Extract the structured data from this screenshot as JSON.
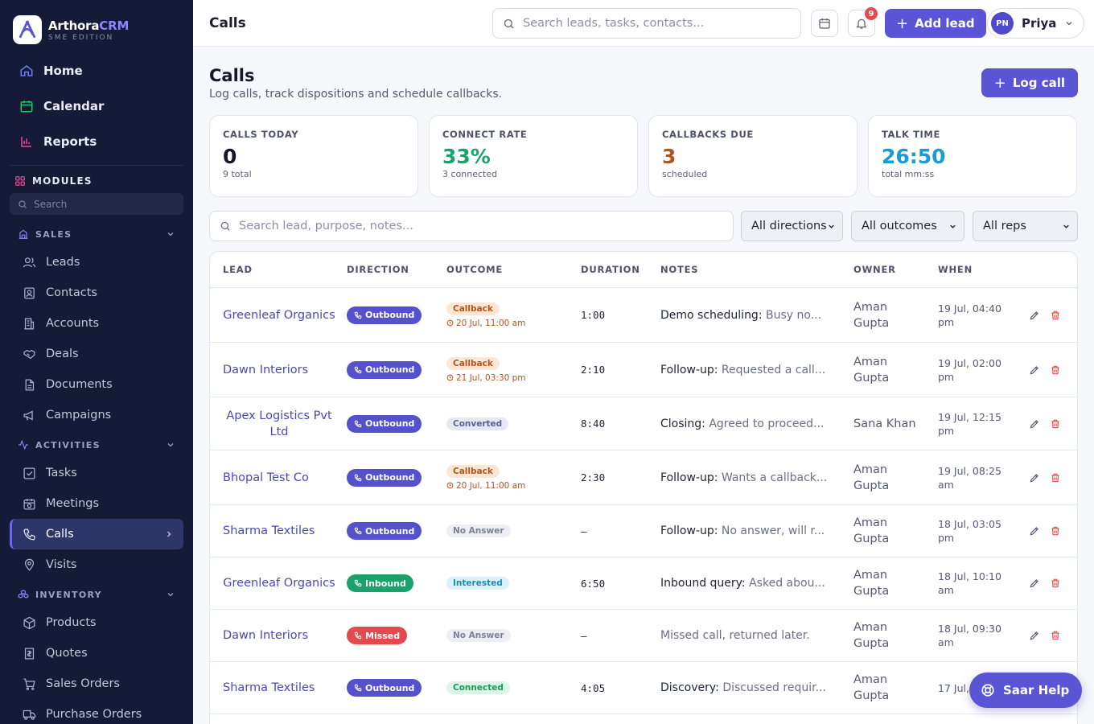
{
  "brand": {
    "name_main": "Arthora",
    "name_accent": "CRM",
    "edition": "SME EDITION"
  },
  "sidebar": {
    "top": [
      {
        "label": "Home",
        "icon": "home-icon",
        "color": "#6b7cff"
      },
      {
        "label": "Calendar",
        "icon": "calendar-icon",
        "color": "#22c55e"
      },
      {
        "label": "Reports",
        "icon": "bar-chart-icon",
        "color": "#ec4899"
      }
    ],
    "modules_label": "MODULES",
    "search_placeholder": "Search",
    "groups": [
      {
        "label": "SALES",
        "items": [
          "Leads",
          "Contacts",
          "Accounts",
          "Deals",
          "Documents",
          "Campaigns"
        ]
      },
      {
        "label": "ACTIVITIES",
        "items": [
          "Tasks",
          "Meetings",
          "Calls",
          "Visits"
        ]
      },
      {
        "label": "INVENTORY",
        "items": [
          "Products",
          "Quotes",
          "Sales Orders",
          "Purchase Orders"
        ]
      }
    ],
    "active_item": "Calls"
  },
  "header": {
    "title": "Calls",
    "search_placeholder": "Search leads, tasks, contacts...",
    "notification_count": "9",
    "add_lead_label": "Add lead",
    "user_initials": "PN",
    "user_name": "Priya"
  },
  "page": {
    "title": "Calls",
    "subtitle": "Log calls, track dispositions and schedule callbacks.",
    "log_call_label": "Log call"
  },
  "stats": [
    {
      "label": "CALLS TODAY",
      "value": "0",
      "note": "9 total",
      "color": "#151827"
    },
    {
      "label": "CONNECT RATE",
      "value": "33%",
      "note": "3 connected",
      "color": "#19a36a"
    },
    {
      "label": "CALLBACKS DUE",
      "value": "3",
      "note": "scheduled",
      "color": "#b4531a"
    },
    {
      "label": "TALK TIME",
      "value": "26:50",
      "note": "total mm:ss",
      "color": "#1a9ad6"
    }
  ],
  "filters": {
    "search_placeholder": "Search lead, purpose, notes...",
    "direction": "All directions",
    "outcome": "All outcomes",
    "rep": "All reps"
  },
  "table": {
    "columns": [
      "LEAD",
      "DIRECTION",
      "OUTCOME",
      "DURATION",
      "NOTES",
      "OWNER",
      "WHEN"
    ],
    "rows": [
      {
        "lead": "Greenleaf Organics",
        "direction": "Outbound",
        "outcome": "Callback",
        "callback_at": "20 Jul, 11:00 am",
        "duration": "1:00",
        "purpose": "Demo scheduling:",
        "note": " Busy no...",
        "owner": "Aman Gupta",
        "when": "19 Jul, 04:40 pm"
      },
      {
        "lead": "Dawn Interiors",
        "direction": "Outbound",
        "outcome": "Callback",
        "callback_at": "21 Jul, 03:30 pm",
        "duration": "2:10",
        "purpose": "Follow-up:",
        "note": " Requested a call...",
        "owner": "Aman Gupta",
        "when": "19 Jul, 02:00 pm"
      },
      {
        "lead": "Apex Logistics Pvt Ltd",
        "direction": "Outbound",
        "outcome": "Converted",
        "callback_at": "",
        "duration": "8:40",
        "purpose": "Closing:",
        "note": " Agreed to proceed...",
        "owner": "Sana Khan",
        "when": "19 Jul, 12:15 pm"
      },
      {
        "lead": "Bhopal Test Co",
        "direction": "Outbound",
        "outcome": "Callback",
        "callback_at": "20 Jul, 11:00 am",
        "duration": "2:30",
        "purpose": "Follow-up:",
        "note": " Wants a callback...",
        "owner": "Aman Gupta",
        "when": "19 Jul, 08:25 am"
      },
      {
        "lead": "Sharma Textiles",
        "direction": "Outbound",
        "outcome": "No Answer",
        "callback_at": "",
        "duration": "–",
        "purpose": "Follow-up:",
        "note": " No answer, will r...",
        "owner": "Aman Gupta",
        "when": "18 Jul, 03:05 pm"
      },
      {
        "lead": "Greenleaf Organics",
        "direction": "Inbound",
        "outcome": "Interested",
        "callback_at": "",
        "duration": "6:50",
        "purpose": "Inbound query:",
        "note": " Asked abou...",
        "owner": "Aman Gupta",
        "when": "18 Jul, 10:10 am"
      },
      {
        "lead": "Dawn Interiors",
        "direction": "Missed",
        "outcome": "No Answer",
        "callback_at": "",
        "duration": "–",
        "purpose": "",
        "note": "Missed call, returned later.",
        "owner": "Aman Gupta",
        "when": "18 Jul, 09:30 am"
      },
      {
        "lead": "Sharma Textiles",
        "direction": "Outbound",
        "outcome": "Connected",
        "callback_at": "",
        "duration": "4:05",
        "purpose": "Discovery:",
        "note": " Discussed requir...",
        "owner": "Aman Gupta",
        "when": "17 Jul, 1"
      }
    ]
  },
  "help": {
    "label": "Saar Help"
  }
}
